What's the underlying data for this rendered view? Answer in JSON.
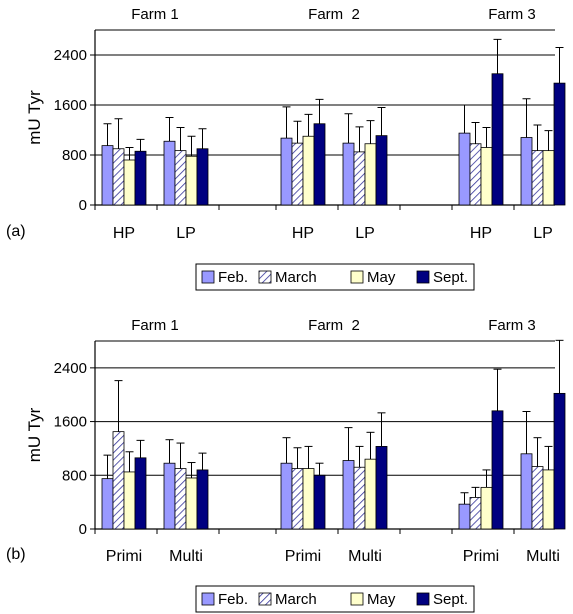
{
  "colors": {
    "feb": "#9999ff",
    "march": "#ffffff",
    "march_hatch": "#333399",
    "may": "#ffffcc",
    "sept": "#000080",
    "grid": "#000000",
    "axis": "#000000"
  },
  "chart_data": [
    {
      "type": "bar",
      "panel_label": "(a)",
      "ylabel": "mU Tyr",
      "ylim": [
        0,
        2800
      ],
      "yticks": [
        0,
        800,
        1600,
        2400
      ],
      "grid": true,
      "farms": [
        "Farm 1",
        "Farm  2",
        "Farm 3"
      ],
      "categories": [
        "HP",
        "LP",
        "HP",
        "LP",
        "HP",
        "LP"
      ],
      "legend_position": "bottom",
      "series": [
        {
          "name": "Feb.",
          "key": "feb",
          "values": [
            950,
            1020,
            1070,
            990,
            1150,
            1080
          ],
          "errors": [
            350,
            380,
            500,
            470,
            450,
            620
          ]
        },
        {
          "name": "March",
          "key": "march",
          "values": [
            900,
            870,
            990,
            850,
            980,
            870
          ],
          "errors": [
            480,
            370,
            350,
            400,
            340,
            410
          ]
        },
        {
          "name": "May",
          "key": "may",
          "values": [
            720,
            780,
            1100,
            980,
            920,
            870
          ],
          "errors": [
            200,
            320,
            350,
            370,
            320,
            320
          ]
        },
        {
          "name": "Sept.",
          "key": "sept",
          "values": [
            860,
            900,
            1300,
            1110,
            2100,
            1950
          ],
          "errors": [
            190,
            320,
            390,
            450,
            550,
            570
          ]
        }
      ]
    },
    {
      "type": "bar",
      "panel_label": "(b)",
      "ylabel": "mU Tyr",
      "ylim": [
        0,
        2800
      ],
      "yticks": [
        0,
        800,
        1600,
        2400
      ],
      "grid": true,
      "farms": [
        "Farm 1",
        "Farm  2",
        "Farm 3"
      ],
      "categories": [
        "Primi",
        "Multi",
        "Primi",
        "Multi",
        "Primi",
        "Multi"
      ],
      "legend_position": "bottom",
      "series": [
        {
          "name": "Feb.",
          "key": "feb",
          "values": [
            750,
            980,
            980,
            1020,
            370,
            1120
          ],
          "errors": [
            350,
            350,
            380,
            490,
            170,
            630
          ]
        },
        {
          "name": "March",
          "key": "march",
          "values": [
            1450,
            900,
            900,
            920,
            470,
            930
          ],
          "errors": [
            760,
            380,
            310,
            310,
            150,
            430
          ]
        },
        {
          "name": "May",
          "key": "may",
          "values": [
            850,
            760,
            900,
            1040,
            620,
            880
          ],
          "errors": [
            300,
            230,
            330,
            400,
            260,
            350
          ]
        },
        {
          "name": "Sept.",
          "key": "sept",
          "values": [
            1060,
            880,
            800,
            1230,
            1760,
            2020
          ],
          "errors": [
            260,
            250,
            180,
            500,
            620,
            790
          ]
        }
      ]
    }
  ]
}
